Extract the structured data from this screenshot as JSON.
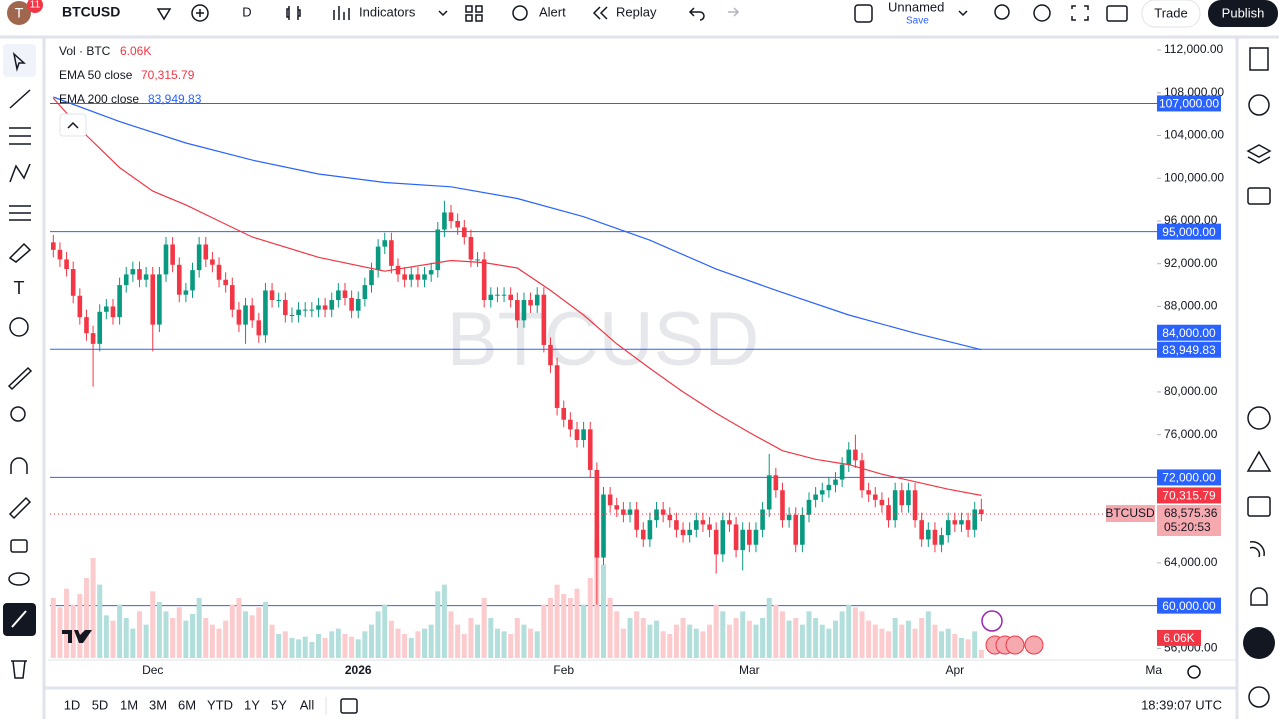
{
  "toolbar": {
    "avatar": "T",
    "badge": "11",
    "symbol": "BTCUSD",
    "interval": "D",
    "indicators": "Indicators",
    "alert": "Alert",
    "replay": "Replay",
    "layout_name": "Unnamed",
    "save": "Save",
    "trade": "Trade",
    "publish": "Publish"
  },
  "bottom_bar": {
    "ranges": [
      "1D",
      "5D",
      "1M",
      "3M",
      "6M",
      "YTD",
      "1Y",
      "5Y",
      "All"
    ],
    "clock": "18:39:07 UTC"
  },
  "chart_data": {
    "type": "candlestick",
    "watermark": "BTCUSD",
    "symbol_tag": "BTCUSD",
    "countdown": "05:20:53",
    "up_color": "#089981",
    "down_color": "#f23645",
    "grid": false,
    "xlim": [
      -0.5,
      166.5
    ],
    "xticks": [
      {
        "value": 15,
        "label": "Dec"
      },
      {
        "value": 46,
        "label": "2026"
      },
      {
        "value": 77,
        "label": "Feb"
      },
      {
        "value": 105,
        "label": "Mar"
      },
      {
        "value": 136,
        "label": "Apr"
      },
      {
        "value": 166,
        "label": "Ma"
      }
    ],
    "ylim": [
      55100,
      112750
    ],
    "yticks": [
      {
        "value": 112000,
        "label": "112,000.00"
      },
      {
        "value": 108000,
        "label": "108,000.00"
      },
      {
        "value": 104000,
        "label": "104,000.00"
      },
      {
        "value": 100000,
        "label": "100,000.00"
      },
      {
        "value": 96000,
        "label": "96,000.00"
      },
      {
        "value": 92000,
        "label": "92,000.00"
      },
      {
        "value": 88000,
        "label": "88,000.00"
      },
      {
        "value": 80000,
        "label": "80,000.00"
      },
      {
        "value": 76000,
        "label": "76,000.00"
      },
      {
        "value": 64000,
        "label": "64,000.00"
      },
      {
        "value": 56000,
        "label": "56,000.00"
      }
    ],
    "open": [
      94000,
      93300,
      92400,
      91500,
      89000,
      87000,
      85500,
      84500,
      87500,
      88000,
      87000,
      90000,
      91000,
      91500,
      90500,
      91000,
      86300,
      91000,
      93800,
      91900,
      89100,
      89500,
      91400,
      93800,
      92400,
      91900,
      90500,
      90000,
      87700,
      86300,
      88100,
      86700,
      85300,
      89500,
      88600,
      88600,
      87200,
      87200,
      87700,
      87700,
      87700,
      88100,
      87700,
      88600,
      89500,
      88800,
      87600,
      88700,
      90000,
      91400,
      93600,
      94200,
      91800,
      91000,
      90500,
      91000,
      90500,
      91000,
      91400,
      95200,
      96800,
      96000,
      95400,
      94500,
      92400,
      92400,
      88600,
      89100,
      89100,
      89100,
      88600,
      86700,
      88600,
      88100,
      89100,
      84400,
      82500,
      78500,
      77400,
      76500,
      75500,
      76500,
      72700,
      64500,
      70400,
      69400,
      69000,
      68500,
      69000,
      67100,
      66200,
      68000,
      69000,
      68500,
      68000,
      67100,
      66600,
      67100,
      68000,
      67600,
      67100,
      64800,
      68000,
      67600,
      65200,
      67100,
      65700,
      67100,
      69000,
      72200,
      70800,
      68000,
      68500,
      65700,
      68500,
      69900,
      70400,
      70800,
      71300,
      71800,
      73200,
      74600,
      73600,
      70800,
      70400,
      69900,
      69400,
      68000,
      70800,
      69400,
      70800,
      68000,
      66200,
      67100,
      65700,
      66600,
      68000,
      67600,
      68000,
      67100,
      69000
    ],
    "high": [
      94700,
      94000,
      93100,
      92200,
      89700,
      87700,
      86200,
      88200,
      88700,
      88700,
      90700,
      91700,
      92200,
      92200,
      91700,
      91700,
      91700,
      94500,
      94500,
      92600,
      90200,
      92100,
      94500,
      94500,
      93100,
      92600,
      91200,
      90700,
      88400,
      88800,
      88800,
      87400,
      90200,
      90200,
      89300,
      89300,
      87900,
      88400,
      88400,
      88400,
      88800,
      88800,
      89300,
      90200,
      90200,
      89500,
      89400,
      90700,
      92100,
      94300,
      94900,
      94900,
      92500,
      91700,
      91700,
      91700,
      91700,
      92100,
      95900,
      97900,
      97500,
      96700,
      96100,
      95200,
      93100,
      93100,
      89800,
      89800,
      89800,
      89800,
      89300,
      89300,
      89300,
      89800,
      89800,
      85100,
      83200,
      79200,
      78100,
      77200,
      77200,
      77200,
      73400,
      71100,
      71100,
      70100,
      69700,
      69700,
      69700,
      67800,
      68700,
      69700,
      69700,
      69200,
      68700,
      67800,
      67800,
      68700,
      68700,
      68300,
      67800,
      68700,
      68700,
      68300,
      67800,
      67800,
      67800,
      69700,
      74200,
      72900,
      71500,
      69200,
      69200,
      69200,
      70600,
      71100,
      71500,
      72000,
      72500,
      73900,
      75300,
      76000,
      74300,
      71500,
      71100,
      70600,
      70100,
      71500,
      71500,
      71500,
      71500,
      68700,
      67800,
      67800,
      67300,
      68700,
      68700,
      68700,
      68700,
      69700,
      70000
    ],
    "low": [
      92600,
      91700,
      90800,
      88300,
      86300,
      84800,
      80500,
      83800,
      86800,
      86300,
      86300,
      89300,
      90300,
      89800,
      89800,
      83800,
      85600,
      90300,
      91200,
      88400,
      88400,
      88800,
      90700,
      91700,
      91200,
      89800,
      89300,
      87000,
      85600,
      84500,
      86000,
      84600,
      84600,
      87900,
      87900,
      86500,
      86500,
      86500,
      87000,
      87000,
      87000,
      87000,
      87000,
      87900,
      88100,
      86900,
      86900,
      88000,
      89300,
      90700,
      92900,
      91100,
      90300,
      89800,
      89800,
      89800,
      89800,
      90300,
      90700,
      94500,
      95300,
      94700,
      93800,
      91700,
      91700,
      87900,
      87900,
      88400,
      88400,
      87900,
      86000,
      86000,
      87400,
      87400,
      83700,
      81800,
      77800,
      76700,
      75800,
      74800,
      74800,
      72000,
      60100,
      63800,
      68700,
      68300,
      67800,
      67800,
      66400,
      65500,
      65500,
      67300,
      67800,
      67300,
      66400,
      65900,
      65900,
      66400,
      66900,
      66400,
      63000,
      64100,
      66900,
      64500,
      63300,
      65000,
      65000,
      66400,
      68300,
      70100,
      67300,
      67300,
      65000,
      65000,
      67800,
      69200,
      69700,
      70100,
      70600,
      71100,
      72500,
      72900,
      70100,
      69700,
      69200,
      68700,
      67300,
      67300,
      68700,
      68700,
      67300,
      65500,
      65500,
      65000,
      65000,
      65900,
      66900,
      66900,
      66400,
      66400,
      67900
    ],
    "close": [
      93300,
      92400,
      91500,
      89000,
      87000,
      85500,
      84500,
      87500,
      88000,
      87000,
      90000,
      91000,
      91500,
      90500,
      91000,
      86300,
      91000,
      93800,
      91900,
      89100,
      89500,
      91400,
      93800,
      92400,
      91900,
      90500,
      90000,
      87700,
      86300,
      88100,
      86700,
      85300,
      89500,
      88600,
      88600,
      87200,
      87200,
      87700,
      87700,
      87700,
      88100,
      87700,
      88600,
      89500,
      88800,
      87600,
      88700,
      90000,
      91400,
      93600,
      94200,
      91800,
      91000,
      90500,
      91000,
      90500,
      91000,
      91400,
      95200,
      96800,
      96000,
      95400,
      94500,
      92400,
      92400,
      88600,
      89100,
      89100,
      89100,
      88600,
      86700,
      88600,
      88100,
      89100,
      84400,
      82500,
      78500,
      77400,
      76500,
      75500,
      76500,
      72700,
      64500,
      70400,
      69400,
      69000,
      68500,
      69000,
      67100,
      66200,
      68000,
      69000,
      68500,
      68000,
      67100,
      66600,
      67100,
      68000,
      67600,
      67100,
      64800,
      68000,
      67600,
      65200,
      67100,
      65700,
      67100,
      69000,
      72200,
      70800,
      68000,
      68500,
      65700,
      68500,
      69900,
      70400,
      70800,
      71300,
      71800,
      73200,
      74600,
      73600,
      70800,
      70400,
      69900,
      69400,
      68000,
      70800,
      69400,
      70800,
      68000,
      66200,
      67100,
      65700,
      66600,
      68000,
      67600,
      68000,
      67100,
      69000,
      68575.36
    ],
    "last_label": "68,575.36",
    "volume": {
      "name": "Vol · BTC",
      "last_label": "6.06K",
      "vlim": [
        0,
        150000
      ],
      "up_color": "#b2dfdb",
      "down_color": "#fccbcd",
      "label_color": "#f23645",
      "values": [
        45000,
        38000,
        52000,
        40000,
        48000,
        60000,
        75000,
        55000,
        32000,
        28000,
        40000,
        30000,
        22000,
        35000,
        25000,
        50000,
        42000,
        35000,
        30000,
        38000,
        28000,
        33000,
        45000,
        30000,
        25000,
        22000,
        28000,
        40000,
        45000,
        35000,
        32000,
        38000,
        42000,
        25000,
        18000,
        20000,
        15000,
        14000,
        16000,
        12000,
        18000,
        15000,
        20000,
        22000,
        18000,
        16000,
        14000,
        20000,
        25000,
        35000,
        40000,
        28000,
        22000,
        18000,
        15000,
        20000,
        22000,
        25000,
        50000,
        55000,
        35000,
        25000,
        18000,
        30000,
        25000,
        45000,
        30000,
        22000,
        20000,
        18000,
        30000,
        25000,
        22000,
        20000,
        40000,
        45000,
        55000,
        48000,
        45000,
        52000,
        40000,
        60000,
        90000,
        70000,
        45000,
        35000,
        22000,
        30000,
        35000,
        30000,
        25000,
        28000,
        20000,
        18000,
        25000,
        30000,
        25000,
        22000,
        20000,
        25000,
        40000,
        35000,
        25000,
        30000,
        35000,
        28000,
        25000,
        30000,
        45000,
        40000,
        35000,
        28000,
        30000,
        25000,
        35000,
        30000,
        25000,
        22000,
        28000,
        35000,
        40000,
        38000,
        35000,
        28000,
        25000,
        22000,
        20000,
        30000,
        25000,
        28000,
        22000,
        30000,
        35000,
        25000,
        20000,
        22000,
        18000,
        15000,
        14000,
        20000,
        6060
      ]
    },
    "ema": [
      {
        "name": "EMA 50 close",
        "color": "#f23645",
        "last_label": "70,315.79",
        "x": [
          0,
          5,
          10,
          15,
          20,
          25,
          30,
          40,
          50,
          60,
          65,
          70,
          75,
          80,
          85,
          90,
          95,
          100,
          105,
          110,
          115,
          120,
          125,
          130,
          135,
          140
        ],
        "values": [
          107500,
          104000,
          101000,
          98800,
          97500,
          96000,
          94500,
          92600,
          91300,
          92300,
          92100,
          91600,
          89500,
          87200,
          84500,
          82200,
          80000,
          78000,
          76200,
          74500,
          73700,
          73200,
          72300,
          71600,
          70900,
          70315.79
        ]
      },
      {
        "name": "EMA 200 close",
        "color": "#2962ff",
        "last_label": "83,949.83",
        "x": [
          0,
          10,
          20,
          30,
          40,
          50,
          60,
          70,
          80,
          90,
          100,
          110,
          120,
          130,
          140
        ],
        "values": [
          107600,
          105300,
          103300,
          101700,
          100400,
          99600,
          99200,
          98100,
          96400,
          94200,
          91500,
          89300,
          87200,
          85500,
          83949.83
        ]
      }
    ],
    "hline_color": "#2962ff",
    "hlines": [
      {
        "value": 107000,
        "label": "107,000.00"
      },
      {
        "value": 95000,
        "label": "95,000.00"
      },
      {
        "value": 84000,
        "label": "84,000.00"
      },
      {
        "value": 72000,
        "label": "72,000.00"
      },
      {
        "value": 60000,
        "label": "60,000.00"
      }
    ]
  }
}
